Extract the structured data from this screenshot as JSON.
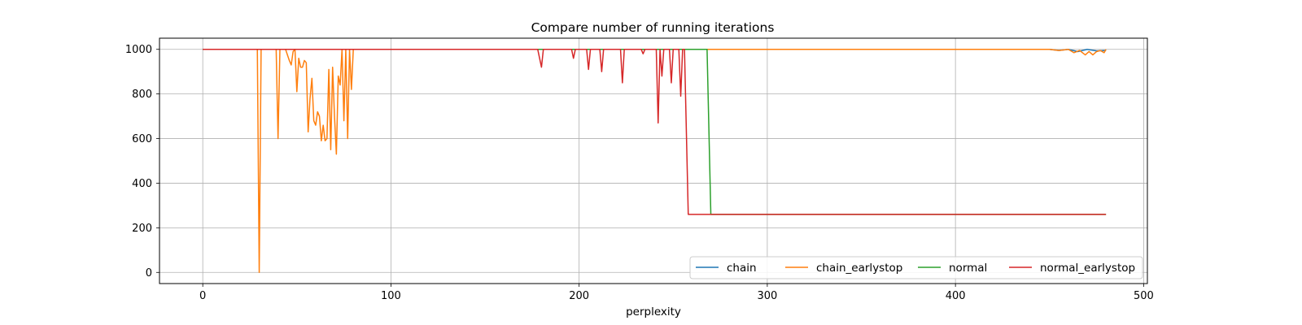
{
  "chart_data": {
    "type": "line",
    "title": "Compare number of running iterations",
    "xlabel": "perplexity",
    "ylabel": "",
    "xlim": [
      -23,
      502
    ],
    "ylim": [
      -50,
      1050
    ],
    "xticks": [
      0,
      100,
      200,
      300,
      400,
      500
    ],
    "yticks": [
      0,
      200,
      400,
      600,
      800,
      1000
    ],
    "grid": true,
    "legend": {
      "placement": "lower-right",
      "ncol": 4
    },
    "series": [
      {
        "name": "chain",
        "color": "#1f77b4",
        "points": [
          [
            0,
            1000
          ],
          [
            450,
            1000
          ],
          [
            455,
            995
          ],
          [
            460,
            1000
          ],
          [
            465,
            990
          ],
          [
            470,
            1000
          ],
          [
            475,
            993
          ],
          [
            480,
            995
          ]
        ]
      },
      {
        "name": "chain_earlystop",
        "color": "#ff7f0e",
        "points": [
          [
            0,
            1000
          ],
          [
            29,
            1000
          ],
          [
            30,
            0
          ],
          [
            31,
            1000
          ],
          [
            39,
            1000
          ],
          [
            40,
            600
          ],
          [
            41,
            1000
          ],
          [
            44,
            1000
          ],
          [
            46,
            950
          ],
          [
            47,
            930
          ],
          [
            48,
            990
          ],
          [
            49,
            1000
          ],
          [
            50,
            810
          ],
          [
            51,
            960
          ],
          [
            52,
            920
          ],
          [
            53,
            920
          ],
          [
            54,
            950
          ],
          [
            55,
            940
          ],
          [
            56,
            630
          ],
          [
            57,
            780
          ],
          [
            58,
            870
          ],
          [
            59,
            680
          ],
          [
            60,
            660
          ],
          [
            61,
            720
          ],
          [
            62,
            700
          ],
          [
            63,
            590
          ],
          [
            64,
            660
          ],
          [
            65,
            590
          ],
          [
            66,
            600
          ],
          [
            67,
            910
          ],
          [
            68,
            550
          ],
          [
            69,
            920
          ],
          [
            70,
            700
          ],
          [
            71,
            530
          ],
          [
            72,
            880
          ],
          [
            73,
            840
          ],
          [
            74,
            1000
          ],
          [
            75,
            680
          ],
          [
            76,
            1000
          ],
          [
            77,
            600
          ],
          [
            78,
            1000
          ],
          [
            79,
            820
          ],
          [
            80,
            1000
          ],
          [
            450,
            1000
          ],
          [
            455,
            995
          ],
          [
            460,
            1000
          ],
          [
            463,
            985
          ],
          [
            466,
            995
          ],
          [
            469,
            975
          ],
          [
            471,
            990
          ],
          [
            473,
            975
          ],
          [
            475,
            990
          ],
          [
            477,
            995
          ],
          [
            479,
            985
          ],
          [
            480,
            1000
          ]
        ]
      },
      {
        "name": "normal",
        "color": "#2ca02c",
        "points": [
          [
            0,
            1000
          ],
          [
            268,
            1000
          ],
          [
            270,
            260
          ],
          [
            480,
            260
          ]
        ]
      },
      {
        "name": "normal_earlystop",
        "color": "#d62728",
        "points": [
          [
            0,
            1000
          ],
          [
            178,
            1000
          ],
          [
            180,
            920
          ],
          [
            181,
            1000
          ],
          [
            196,
            1000
          ],
          [
            197,
            960
          ],
          [
            198,
            1000
          ],
          [
            204,
            1000
          ],
          [
            205,
            910
          ],
          [
            206,
            1000
          ],
          [
            211,
            1000
          ],
          [
            212,
            900
          ],
          [
            213,
            1000
          ],
          [
            222,
            1000
          ],
          [
            223,
            850
          ],
          [
            224,
            1000
          ],
          [
            233,
            1000
          ],
          [
            234,
            980
          ],
          [
            235,
            1000
          ],
          [
            241,
            1000
          ],
          [
            242,
            670
          ],
          [
            243,
            1000
          ],
          [
            244,
            880
          ],
          [
            245,
            1000
          ],
          [
            248,
            1000
          ],
          [
            249,
            850
          ],
          [
            250,
            1000
          ],
          [
            253,
            1000
          ],
          [
            254,
            790
          ],
          [
            255,
            1000
          ],
          [
            256,
            1000
          ],
          [
            258,
            260
          ],
          [
            480,
            260
          ]
        ]
      }
    ]
  }
}
